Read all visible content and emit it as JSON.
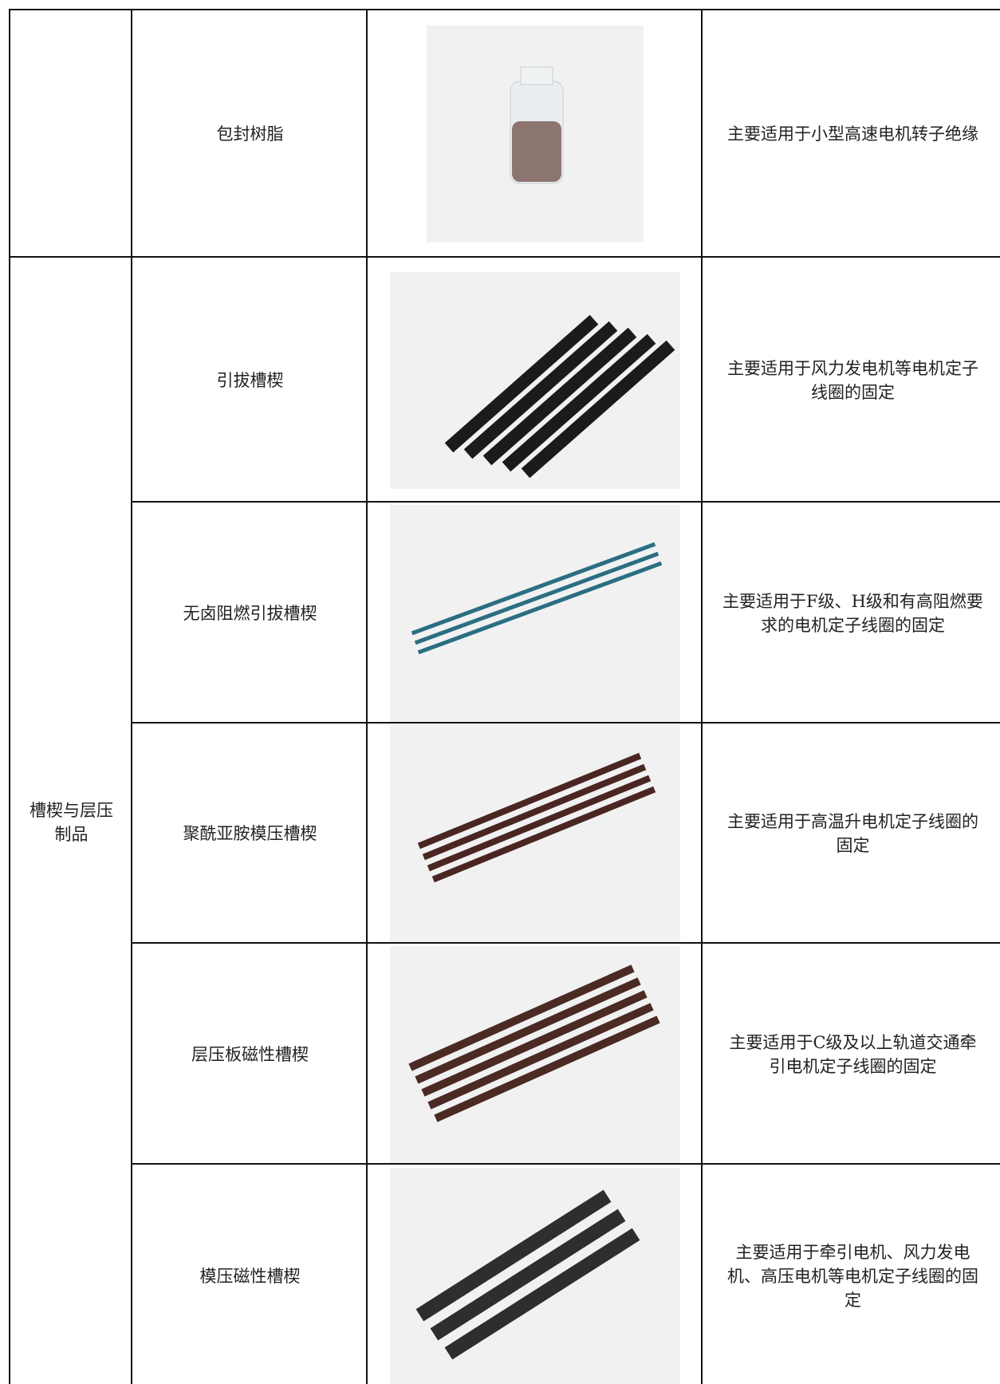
{
  "table": {
    "first_row": {
      "name": "包封树脂",
      "description": "主要适用于小型高速电机转子绝缘"
    },
    "group": {
      "label": "槽楔与层压制品",
      "rows": [
        {
          "name": "引拔槽楔",
          "description": "主要适用于风力发电机等电机定子线圈的固定"
        },
        {
          "name": "无卤阻燃引拔槽楔",
          "description": "主要适用于F级、H级和有高阻燃要求的电机定子线圈的固定"
        },
        {
          "name": "聚酰亚胺模压槽楔",
          "description": "主要适用于高温升电机定子线圈的固定"
        },
        {
          "name": "层压板磁性槽楔",
          "description": "主要适用于C级及以上轨道交通牵引电机定子线圈的固定"
        },
        {
          "name": "模压磁性槽楔",
          "description": "主要适用于牵引电机、风力发电机、高压电机等电机定子线圈的固定"
        }
      ]
    }
  }
}
